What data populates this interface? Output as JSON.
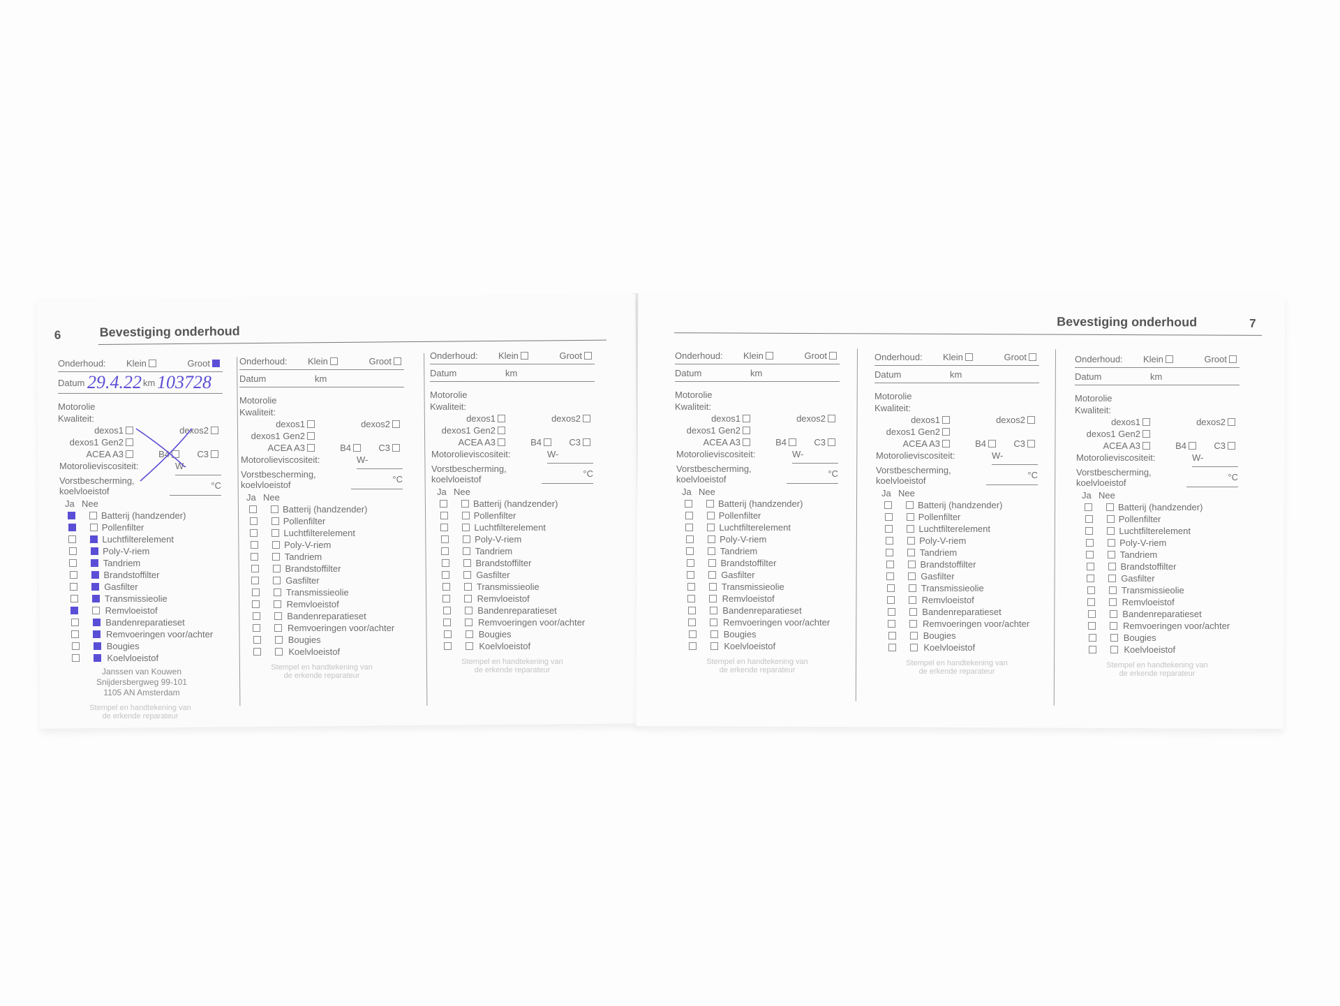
{
  "left_page": {
    "number": "6",
    "title": "Bevestiging onderhoud"
  },
  "right_page": {
    "number": "7",
    "title": "Bevestiging onderhoud"
  },
  "form_labels": {
    "onderhoud": "Onderhoud:",
    "klein": "Klein",
    "groot": "Groot",
    "datum": "Datum",
    "km": "km",
    "motorolie": "Motorolie",
    "kwaliteit": "Kwaliteit:",
    "dexos1": "dexos1",
    "dexos2": "dexos2",
    "dexos1_gen2": "dexos1 Gen2",
    "acea_a3": "ACEA A3",
    "b4": "B4",
    "c3": "C3",
    "viscositeit": "Motorolieviscositeit:",
    "viscositeit_value": "W-",
    "vorst1": "Vorstbescherming,",
    "vorst2": "koelvloeistof",
    "degrees": "°C",
    "ja": "Ja",
    "nee": "Nee",
    "stamp_caption_1": "Stempel en handtekening van",
    "stamp_caption_2": "de erkende reparateur"
  },
  "items": [
    "Batterij (handzender)",
    "Pollenfilter",
    "Luchtfilterelement",
    "Poly-V-riem",
    "Tandriem",
    "Brandstoffilter",
    "Gasfilter",
    "Transmissieolie",
    "Remvloeistof",
    "Bandenreparatieset",
    "Remvoeringen voor/achter",
    "Bougies",
    "Koelvloeistof"
  ],
  "entries": [
    {
      "klein": false,
      "groot": true,
      "handwritten_date": "29.4.22",
      "handwritten_km": "103728",
      "quality_crossed_out": true,
      "ja": [
        true,
        true,
        false,
        false,
        false,
        false,
        false,
        false,
        true,
        false,
        false,
        false,
        false
      ],
      "nee": [
        false,
        false,
        true,
        true,
        true,
        true,
        true,
        true,
        false,
        true,
        true,
        true,
        true
      ],
      "stamp": [
        "Janssen van Kouwen",
        "Snijdersbergweg 99-101",
        "1105 AN Amsterdam"
      ]
    },
    {
      "klein": false,
      "groot": false,
      "ja": [],
      "nee": []
    },
    {
      "klein": false,
      "groot": false,
      "ja": [],
      "nee": []
    },
    {
      "klein": false,
      "groot": false,
      "ja": [],
      "nee": []
    },
    {
      "klein": false,
      "groot": false,
      "ja": [],
      "nee": []
    },
    {
      "klein": false,
      "groot": false,
      "ja": [],
      "nee": []
    }
  ],
  "colors": {
    "ink": "#5b4ed6",
    "print": "#6e6e6e"
  }
}
